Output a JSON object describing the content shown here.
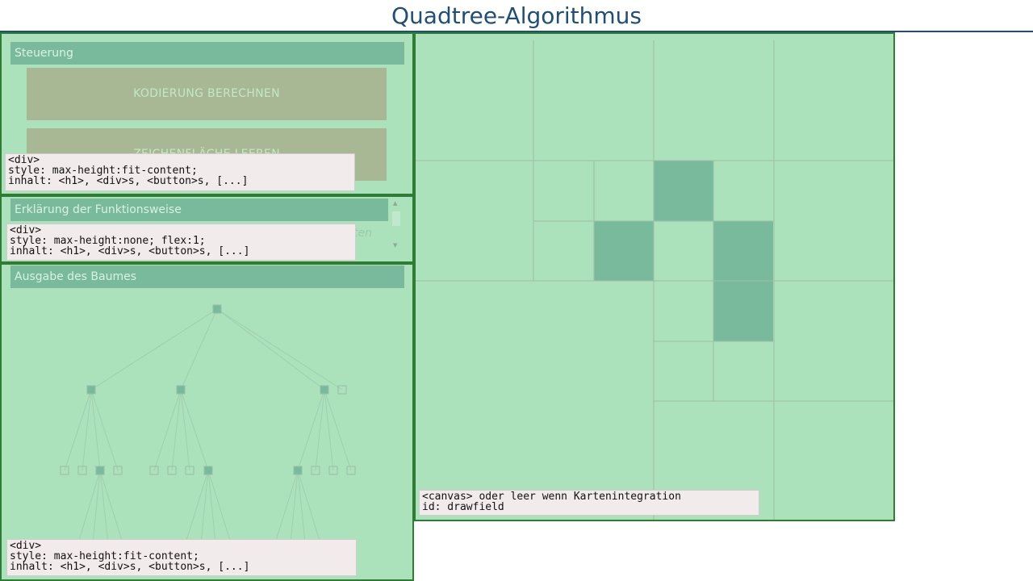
{
  "page": {
    "title": "Quadtree-Algorithmus"
  },
  "controls": {
    "heading": "Steuerung",
    "compute_button": "KODIERUNG BERECHNEN",
    "clear_button": "ZEICHENFLÄCHE LEEREN",
    "info": "<div>\nstyle: max-height:fit-content;\ninhalt: <h1>, <div>s, <button>s, [...]"
  },
  "explanation": {
    "heading": "Erklärung der Funktionsweise",
    "partial_text": "ten",
    "info": "<div>\nstyle: max-height:none; flex:1;\ninhalt: <h1>, <div>s, <button>s, [...]"
  },
  "tree_output": {
    "heading": "Ausgabe des Baumes",
    "info": "<div>\nstyle: max-height:fit-content;\ninhalt: <h1>, <div>s, <button>s, [...]"
  },
  "canvas": {
    "info": "<canvas> oder leer wenn Kartenintegration\nid: drawfield"
  },
  "colors": {
    "panel_bg": "#abe1bb",
    "panel_border": "#2e7d32",
    "filled_cell": "#7aba9c",
    "grid_line": "#9dbfa6",
    "title": "#1f4e79",
    "button_bg": "#a8b894"
  }
}
